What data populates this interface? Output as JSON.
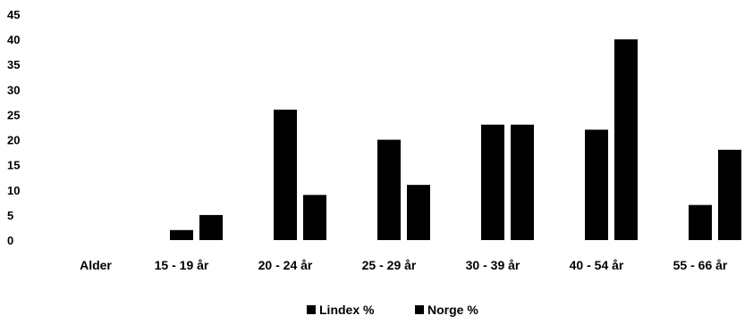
{
  "chart_data": {
    "type": "bar",
    "categories": [
      "Alder",
      "15 - 19 år",
      "20 - 24 år",
      "25 - 29 år",
      "30 - 39 år",
      "40 - 54 år",
      "55 - 66 år"
    ],
    "series": [
      {
        "name": "Lindex %",
        "values": [
          null,
          2,
          26,
          20,
          23,
          22,
          7
        ]
      },
      {
        "name": "Norge %",
        "values": [
          null,
          5,
          9,
          11,
          23,
          40,
          18
        ]
      }
    ],
    "ylim": [
      0,
      45
    ],
    "yticks": [
      0,
      5,
      10,
      15,
      20,
      25,
      30,
      35,
      40,
      45
    ],
    "grid": false,
    "legend_position": "bottom-center",
    "colors": {
      "series": [
        "#000000",
        "#000000"
      ],
      "text": "#000000",
      "background": "#ffffff"
    }
  }
}
